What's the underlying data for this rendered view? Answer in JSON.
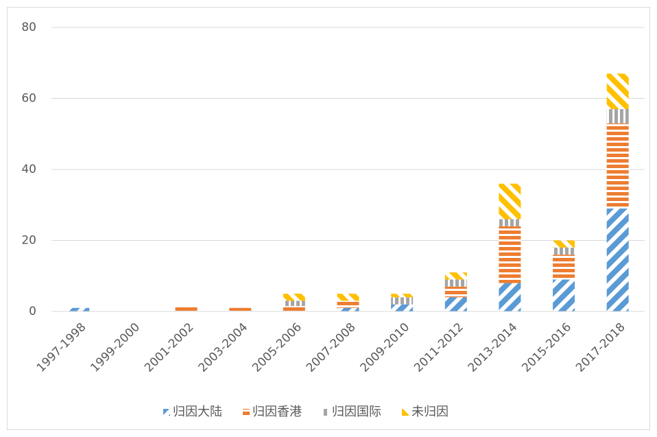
{
  "chart_data": {
    "type": "stacked_bar",
    "categories": [
      "1997-1998",
      "1999-2000",
      "2001-2002",
      "2003-2004",
      "2005-2006",
      "2007-2008",
      "2009-2010",
      "2011-2012",
      "2013-2014",
      "2015-2016",
      "2017-2018"
    ],
    "series": [
      {
        "name": "归因大陆",
        "color": "#5b9bd5",
        "values": [
          1,
          0,
          0,
          0,
          0,
          1,
          2,
          4,
          8,
          9,
          29
        ]
      },
      {
        "name": "归因香港",
        "color": "#ed7d31",
        "values": [
          0,
          0,
          1.5,
          1,
          1.5,
          2,
          0,
          3,
          16,
          7,
          24
        ]
      },
      {
        "name": "归因国际",
        "color": "#a5a5a5",
        "values": [
          0,
          0,
          0,
          0,
          1.5,
          0,
          2,
          2,
          2,
          2,
          4
        ]
      },
      {
        "name": "未归因",
        "color": "#ffc000",
        "values": [
          0,
          0,
          0,
          0,
          2,
          2,
          1,
          2,
          10,
          2,
          10
        ]
      }
    ],
    "ylim": [
      0,
      80
    ],
    "yticks": [
      0,
      20,
      40,
      60,
      80
    ],
    "grid": true,
    "legend": "bottom"
  }
}
